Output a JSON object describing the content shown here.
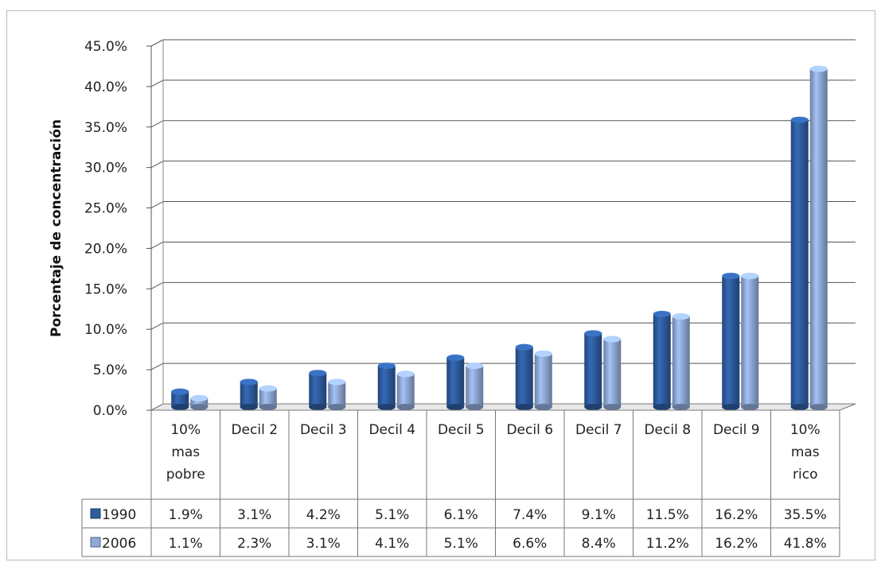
{
  "chart_data": {
    "type": "bar",
    "title": "",
    "xlabel": "",
    "ylabel": "Porcentaje de concentración",
    "ylim": [
      0,
      45
    ],
    "yticks": [
      "0.0%",
      "5.0%",
      "10.0%",
      "15.0%",
      "20.0%",
      "25.0%",
      "30.0%",
      "35.0%",
      "40.0%",
      "45.0%"
    ],
    "categories": [
      [
        "10%",
        "mas",
        "pobre"
      ],
      [
        "Decil 2"
      ],
      [
        "Decil 3"
      ],
      [
        "Decil 4"
      ],
      [
        "Decil 5"
      ],
      [
        "Decil 6"
      ],
      [
        "Decil 7"
      ],
      [
        "Decil 8"
      ],
      [
        "Decil 9"
      ],
      [
        "10%",
        "mas",
        "rico"
      ]
    ],
    "series": [
      {
        "name": "1990",
        "color": "#2e5c9e",
        "values": [
          1.9,
          3.1,
          4.2,
          5.1,
          6.1,
          7.4,
          9.1,
          11.5,
          16.2,
          35.5
        ],
        "labels": [
          "1.9%",
          "3.1%",
          "4.2%",
          "5.1%",
          "6.1%",
          "7.4%",
          "9.1%",
          "11.5%",
          "16.2%",
          "35.5%"
        ]
      },
      {
        "name": "2006",
        "color": "#8fa9d6",
        "values": [
          1.1,
          2.3,
          3.1,
          4.1,
          5.1,
          6.6,
          8.4,
          11.2,
          16.2,
          41.8
        ],
        "labels": [
          "1.1%",
          "2.3%",
          "3.1%",
          "4.1%",
          "5.1%",
          "6.6%",
          "8.4%",
          "11.2%",
          "16.2%",
          "41.8%"
        ]
      }
    ],
    "grid": true,
    "legend": "data-table"
  }
}
